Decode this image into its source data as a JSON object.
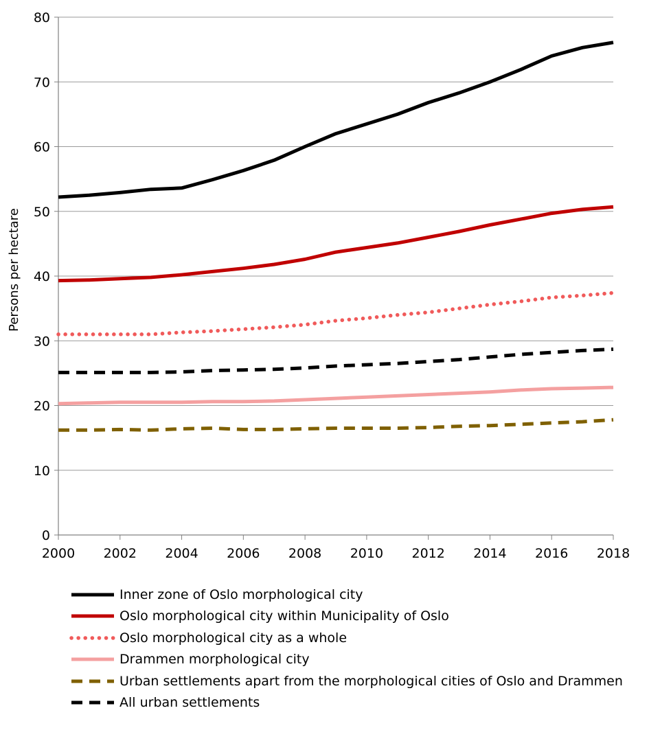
{
  "chart_data": {
    "type": "line",
    "title": "",
    "xlabel": "",
    "ylabel": "Persons per hectare",
    "xlim": [
      2000,
      2018
    ],
    "ylim": [
      0,
      80
    ],
    "x_ticks": [
      "2000",
      "2002",
      "2004",
      "2006",
      "2008",
      "2010",
      "2012",
      "2014",
      "2016",
      "2018"
    ],
    "y_ticks": [
      "0",
      "10",
      "20",
      "30",
      "40",
      "50",
      "60",
      "70",
      "80"
    ],
    "grid": "horizontal",
    "legend_position": "bottom",
    "x": [
      2000,
      2001,
      2002,
      2003,
      2004,
      2005,
      2006,
      2007,
      2008,
      2009,
      2010,
      2011,
      2012,
      2013,
      2014,
      2015,
      2016,
      2017,
      2018
    ],
    "series": [
      {
        "name": "Inner zone of Oslo morphological city",
        "color": "#000000",
        "style": "solid",
        "values": [
          52.2,
          52.5,
          52.9,
          53.4,
          53.6,
          54.9,
          56.3,
          57.9,
          60.0,
          62.0,
          63.5,
          65.0,
          66.8,
          68.3,
          70.0,
          71.9,
          74.0,
          75.3,
          76.1
        ]
      },
      {
        "name": "Oslo morphological city within Municipality of Oslo",
        "color": "#c00000",
        "style": "solid",
        "values": [
          39.3,
          39.4,
          39.6,
          39.8,
          40.2,
          40.7,
          41.2,
          41.8,
          42.6,
          43.7,
          44.4,
          45.1,
          46.0,
          46.9,
          47.9,
          48.8,
          49.7,
          50.3,
          50.7
        ]
      },
      {
        "name": "Oslo morphological city as a whole",
        "color": "#f05a5a",
        "style": "dotted",
        "values": [
          31.0,
          31.0,
          31.0,
          31.0,
          31.3,
          31.5,
          31.8,
          32.1,
          32.5,
          33.1,
          33.5,
          34.0,
          34.4,
          35.0,
          35.6,
          36.1,
          36.7,
          37.0,
          37.4
        ]
      },
      {
        "name": "Drammen morphological city",
        "color": "#f4a0a0",
        "style": "solid",
        "values": [
          20.3,
          20.4,
          20.5,
          20.5,
          20.5,
          20.6,
          20.6,
          20.7,
          20.9,
          21.1,
          21.3,
          21.5,
          21.7,
          21.9,
          22.1,
          22.4,
          22.6,
          22.7,
          22.8
        ]
      },
      {
        "name": "Urban settlements apart from the morphological cities of Oslo and Drammen",
        "color": "#7f6000",
        "style": "dashed",
        "values": [
          16.2,
          16.2,
          16.3,
          16.2,
          16.4,
          16.5,
          16.3,
          16.3,
          16.4,
          16.5,
          16.5,
          16.5,
          16.6,
          16.8,
          16.9,
          17.1,
          17.3,
          17.5,
          17.8
        ]
      },
      {
        "name": "All urban settlements",
        "color": "#000000",
        "style": "dashed",
        "values": [
          25.1,
          25.1,
          25.1,
          25.1,
          25.2,
          25.4,
          25.5,
          25.6,
          25.8,
          26.1,
          26.3,
          26.5,
          26.8,
          27.1,
          27.5,
          27.9,
          28.2,
          28.5,
          28.7
        ]
      }
    ]
  },
  "legend": {
    "items": [
      {
        "label": "Inner zone of Oslo morphological city",
        "color": "#000000",
        "style": "solid"
      },
      {
        "label": "Oslo morphological city within Municipality of Oslo",
        "color": "#c00000",
        "style": "solid"
      },
      {
        "label": "Oslo morphological city as a whole",
        "color": "#f05a5a",
        "style": "dotted"
      },
      {
        "label": "Drammen morphological city",
        "color": "#f4a0a0",
        "style": "solid"
      },
      {
        "label": "Urban settlements apart from the morphological cities of Oslo and Drammen",
        "color": "#7f6000",
        "style": "dashed"
      },
      {
        "label": "All urban settlements",
        "color": "#000000",
        "style": "dashed"
      }
    ]
  }
}
